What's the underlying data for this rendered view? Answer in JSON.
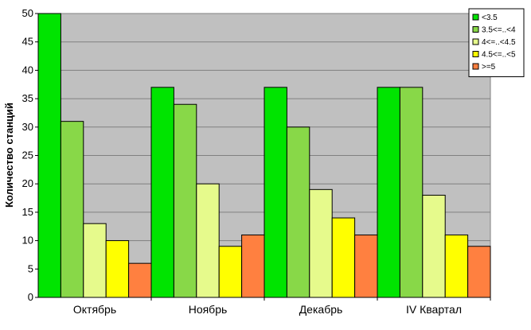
{
  "chart_data": {
    "type": "bar",
    "title": "",
    "xlabel": "",
    "ylabel": "Количество станций",
    "categories": [
      "Октябрь",
      "Ноябрь",
      "Декабрь",
      "IV Квартал"
    ],
    "ylim": [
      0,
      50
    ],
    "yticks": [
      0,
      5,
      10,
      15,
      20,
      25,
      30,
      35,
      40,
      45,
      50
    ],
    "grid": true,
    "legend_position": "top-right",
    "series": [
      {
        "name": "<3.5",
        "color": "#00e400",
        "values": [
          50,
          37,
          37,
          37
        ]
      },
      {
        "name": "3.5<=..<4",
        "color": "#88d848",
        "values": [
          31,
          34,
          30,
          37
        ]
      },
      {
        "name": "4<=..<4.5",
        "color": "#e6fa8c",
        "values": [
          13,
          20,
          19,
          18
        ]
      },
      {
        "name": "4.5<=..<5",
        "color": "#ffff00",
        "values": [
          10,
          9,
          14,
          11
        ]
      },
      {
        "name": ">=5",
        "color": "#ff8040",
        "values": [
          6,
          11,
          11,
          9
        ]
      }
    ]
  }
}
